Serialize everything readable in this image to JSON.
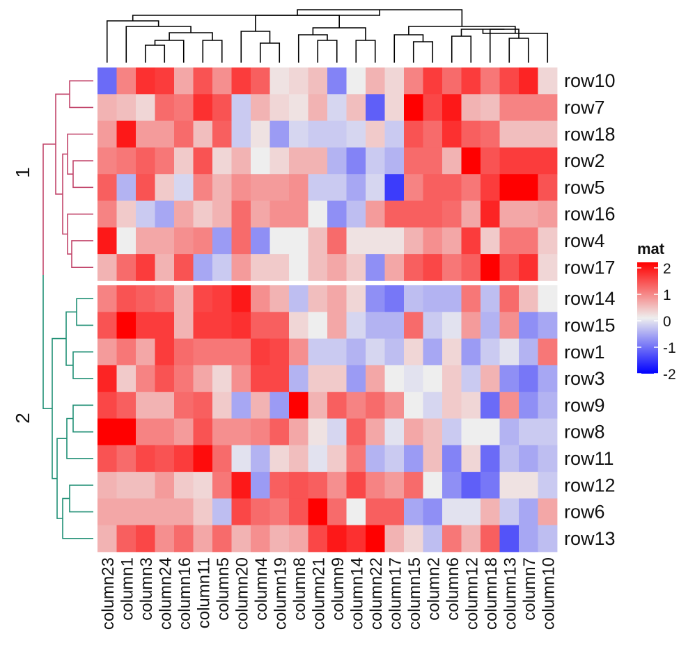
{
  "chart_data": {
    "type": "heatmap",
    "title": "",
    "columns": [
      "column23",
      "column1",
      "column3",
      "column24",
      "column16",
      "column11",
      "column5",
      "column20",
      "column4",
      "column19",
      "column8",
      "column21",
      "column9",
      "column14",
      "column22",
      "column17",
      "column15",
      "column2",
      "column6",
      "column12",
      "column18",
      "column13",
      "column7",
      "column10"
    ],
    "row_groups": [
      {
        "label": "1",
        "color": "#c2466b",
        "rows": [
          "row10",
          "row7",
          "row18",
          "row2",
          "row5",
          "row16",
          "row4",
          "row17"
        ]
      },
      {
        "label": "2",
        "color": "#1f8f74",
        "rows": [
          "row14",
          "row15",
          "row1",
          "row3",
          "row9",
          "row8",
          "row11",
          "row12",
          "row6",
          "row13"
        ]
      }
    ],
    "values": [
      [
        -1.1,
        0.9,
        1.6,
        1.5,
        0.6,
        1.3,
        0.8,
        1.5,
        1.2,
        0.1,
        0.2,
        0.4,
        -0.9,
        0.0,
        0.5,
        0.2,
        0.9,
        1.5,
        1.1,
        1.5,
        1.0,
        1.4,
        1.7,
        0.2
      ],
      [
        0.5,
        0.4,
        0.2,
        1.1,
        1.0,
        1.6,
        1.3,
        -0.3,
        0.5,
        0.2,
        0.1,
        0.5,
        -0.2,
        0.4,
        -1.2,
        0.2,
        2.2,
        1.4,
        1.8,
        0.5,
        0.4,
        0.9,
        0.9,
        0.9
      ],
      [
        0.7,
        1.8,
        0.7,
        0.7,
        1.1,
        0.4,
        1.2,
        -0.3,
        0.1,
        -0.7,
        -0.2,
        -0.3,
        -0.3,
        -0.2,
        0.3,
        -0.3,
        1.3,
        1.1,
        1.6,
        1.2,
        1.1,
        0.4,
        0.4,
        0.4
      ],
      [
        0.9,
        1.0,
        1.2,
        1.0,
        0.3,
        1.3,
        0.2,
        0.5,
        0.0,
        0.2,
        0.5,
        0.5,
        -0.5,
        -0.9,
        -0.3,
        -0.5,
        1.1,
        1.1,
        0.5,
        2.2,
        1.3,
        1.5,
        1.5,
        1.5
      ],
      [
        1.2,
        -0.5,
        1.3,
        0.3,
        -0.2,
        0.9,
        0.5,
        0.8,
        0.7,
        0.7,
        0.8,
        -0.3,
        -0.3,
        -0.6,
        -0.2,
        -1.5,
        0.9,
        1.2,
        1.2,
        1.0,
        1.5,
        2.3,
        2.3,
        1.3
      ],
      [
        0.9,
        0.3,
        -0.3,
        -0.6,
        0.6,
        0.3,
        0.5,
        1.1,
        0.6,
        0.8,
        0.8,
        0.0,
        -0.8,
        -0.4,
        0.7,
        1.2,
        1.2,
        1.2,
        1.1,
        0.6,
        1.7,
        0.6,
        0.6,
        0.7
      ],
      [
        1.8,
        0.0,
        0.6,
        0.6,
        0.8,
        0.9,
        -0.7,
        1.1,
        -0.8,
        0.0,
        0.0,
        0.4,
        1.1,
        0.1,
        0.1,
        0.1,
        0.5,
        0.8,
        0.6,
        1.5,
        0.3,
        1.0,
        1.0,
        0.3
      ],
      [
        0.5,
        1.1,
        1.5,
        0.5,
        1.3,
        -0.6,
        -0.3,
        0.7,
        0.3,
        0.3,
        0.0,
        0.4,
        0.6,
        0.3,
        -0.8,
        0.6,
        1.2,
        1.4,
        1.0,
        1.2,
        2.4,
        1.3,
        1.6,
        0.2
      ]
    ],
    "values_group2": [
      [
        0.9,
        1.3,
        1.2,
        1.1,
        0.5,
        1.4,
        1.5,
        1.8,
        0.8,
        0.5,
        -0.4,
        0.4,
        0.6,
        0.2,
        -0.8,
        -1.0,
        -0.4,
        -0.5,
        -0.5,
        1.0,
        -0.4,
        1.1,
        0.4,
        0.0
      ],
      [
        1.3,
        2.0,
        1.5,
        1.5,
        0.5,
        1.5,
        1.5,
        1.6,
        1.2,
        1.2,
        0.2,
        0.0,
        0.6,
        -0.2,
        -0.5,
        -0.5,
        1.1,
        -0.3,
        -0.1,
        0.7,
        -0.5,
        0.8,
        -0.8,
        -0.6
      ],
      [
        0.7,
        1.0,
        0.6,
        1.5,
        1.1,
        1.0,
        1.0,
        1.0,
        1.5,
        1.4,
        0.8,
        -0.3,
        -0.3,
        -0.5,
        -0.2,
        -0.4,
        0.2,
        -0.6,
        0.2,
        -0.7,
        -0.3,
        -0.1,
        -0.5,
        1.0
      ],
      [
        1.7,
        0.3,
        0.9,
        1.3,
        1.0,
        0.6,
        0.2,
        0.8,
        1.4,
        1.4,
        -0.5,
        0.3,
        0.3,
        -0.7,
        0.6,
        0.0,
        -0.1,
        0.0,
        0.3,
        -0.3,
        0.5,
        -0.8,
        -1.0,
        -0.6
      ],
      [
        1.4,
        1.2,
        0.5,
        0.5,
        1.1,
        1.2,
        0.3,
        -0.6,
        0.5,
        -0.7,
        2.0,
        0.5,
        1.2,
        0.9,
        1.1,
        0.8,
        0.0,
        -0.2,
        0.3,
        0.2,
        -1.1,
        0.8,
        -0.8,
        -0.5
      ],
      [
        2.1,
        2.3,
        0.9,
        0.9,
        0.7,
        1.3,
        0.8,
        0.8,
        0.9,
        1.2,
        0.6,
        0.1,
        -0.2,
        1.2,
        0.6,
        -0.1,
        0.6,
        0.4,
        -0.3,
        0.0,
        0.0,
        -0.5,
        -0.3,
        -0.3
      ],
      [
        1.3,
        1.1,
        1.4,
        1.3,
        1.5,
        1.9,
        1.1,
        -0.1,
        -0.5,
        0.2,
        0.4,
        -0.1,
        0.3,
        1.0,
        -0.5,
        -0.3,
        -0.7,
        0.4,
        -0.9,
        0.2,
        -1.1,
        -0.4,
        -0.6,
        -0.4
      ],
      [
        0.5,
        0.4,
        0.4,
        0.7,
        0.3,
        0.2,
        1.0,
        1.8,
        -0.7,
        1.2,
        1.3,
        1.2,
        0.8,
        1.4,
        0.9,
        0.7,
        1.1,
        0.0,
        -0.8,
        -1.2,
        -1.0,
        0.1,
        0.1,
        -0.3
      ],
      [
        0.6,
        0.6,
        0.6,
        0.6,
        0.6,
        0.3,
        -0.4,
        1.4,
        1.1,
        1.0,
        1.3,
        2.1,
        1.1,
        0.0,
        1.2,
        1.2,
        -0.6,
        -0.8,
        -0.1,
        -0.1,
        0.5,
        -0.3,
        -0.6,
        0.6
      ],
      [
        0.5,
        1.2,
        1.4,
        0.8,
        1.1,
        0.6,
        1.1,
        0.5,
        0.8,
        0.5,
        0.6,
        1.4,
        1.8,
        1.6,
        2.1,
        0.5,
        0.2,
        -0.4,
        1.0,
        0.5,
        1.2,
        -1.3,
        -0.6,
        -0.4
      ]
    ],
    "colorscale": {
      "title": "mat",
      "ticks": [
        "2",
        "1",
        "0",
        "-1",
        "-2"
      ],
      "range": [
        -2,
        2
      ],
      "low_color": "#0000ff",
      "mid_color": "#eeeeee",
      "high_color": "#ff0000"
    },
    "column_dendrogram_color": "#000000"
  }
}
